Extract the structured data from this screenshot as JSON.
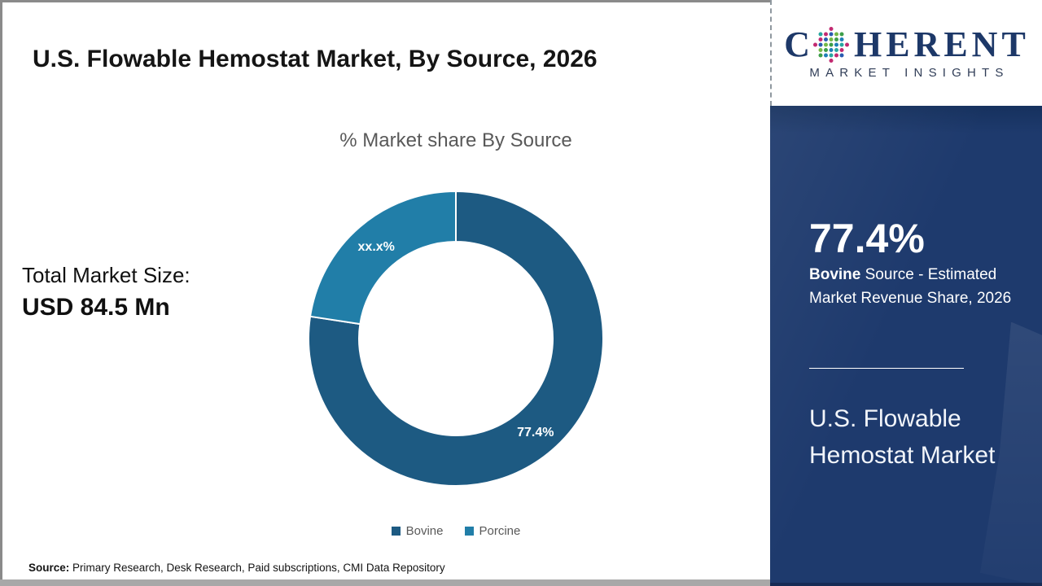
{
  "title": "U.S. Flowable Hemostat Market, By Source, 2026",
  "logo": {
    "part1": "C",
    "part2": "HERENT",
    "tagline": "MARKET INSIGHTS"
  },
  "left_panel": {
    "total_label": "Total Market Size:",
    "total_value": "USD 84.5 Mn"
  },
  "chart_data": {
    "type": "pie",
    "subtype": "donut",
    "title": "% Market share By Source",
    "slices": [
      {
        "name": "Bovine",
        "value": 77.4,
        "label": "77.4%",
        "color": "#1d5a82"
      },
      {
        "name": "Porcine",
        "value": 22.6,
        "label": "xx.x%",
        "color": "#217ea8"
      }
    ],
    "start_angle_deg": 0,
    "direction": "clockwise",
    "inner_radius_ratio": 0.66,
    "legend_position": "bottom",
    "legend_text_color": "#595959"
  },
  "sidebar": {
    "stat_value": "77.4%",
    "stat_desc_bold": "Bovine",
    "stat_desc_rest": " Source - Estimated Market Revenue Share, 2026",
    "market_name": "U.S. Flowable Hemostat Market",
    "background_color": "#1e3a6d"
  },
  "source": {
    "label": "Source:",
    "text": " Primary Research, Desk Research, Paid subscriptions, CMI Data Repository"
  },
  "colors": {
    "accent_dark_blue": "#1d5a82",
    "accent_light_blue": "#217ea8",
    "sidebar_navy": "#1e3a6d",
    "logo_navy": "#1d3868",
    "subtitle_gray": "#595959"
  }
}
